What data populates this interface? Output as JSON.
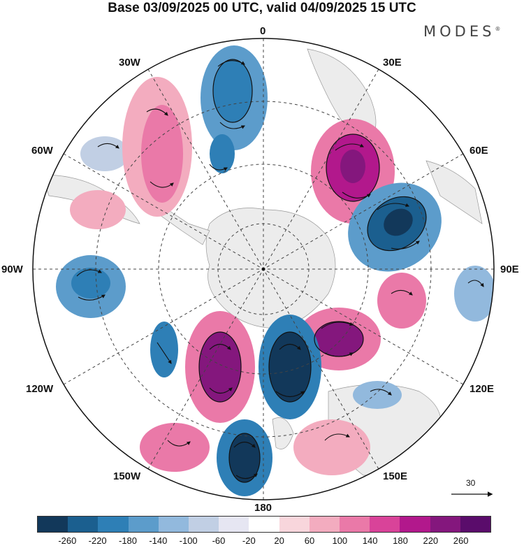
{
  "title": "Base 03/09/2025 00 UTC, valid 04/09/2025 15 UTC",
  "brand": "MODES",
  "brand_mark": "®",
  "longitude_labels": {
    "top": "0",
    "w30": "30W",
    "e30": "30E",
    "w60": "60W",
    "e60": "60E",
    "w90": "90W",
    "e90": "90E",
    "w120": "120W",
    "e120": "120E",
    "w150": "150W",
    "e150": "150E",
    "bottom": "180"
  },
  "vector_scale_label": "30",
  "legend": {
    "labels": [
      "-260",
      "-220",
      "-180",
      "-140",
      "-100",
      "-60",
      "-20",
      "20",
      "60",
      "100",
      "140",
      "180",
      "220",
      "260"
    ],
    "colors": [
      "#12385a",
      "#1b5f8f",
      "#2e7fb6",
      "#5c9ccb",
      "#92b9dd",
      "#c1cfe4",
      "#e6e6f2",
      "#ffffff",
      "#f8d6dc",
      "#f3acbf",
      "#ea79a8",
      "#d94399",
      "#b2188c",
      "#84177d",
      "#5a0c6b"
    ]
  },
  "colors": {
    "land": "#ececec",
    "ocean": "#ffffff",
    "grid": "#444444"
  }
}
